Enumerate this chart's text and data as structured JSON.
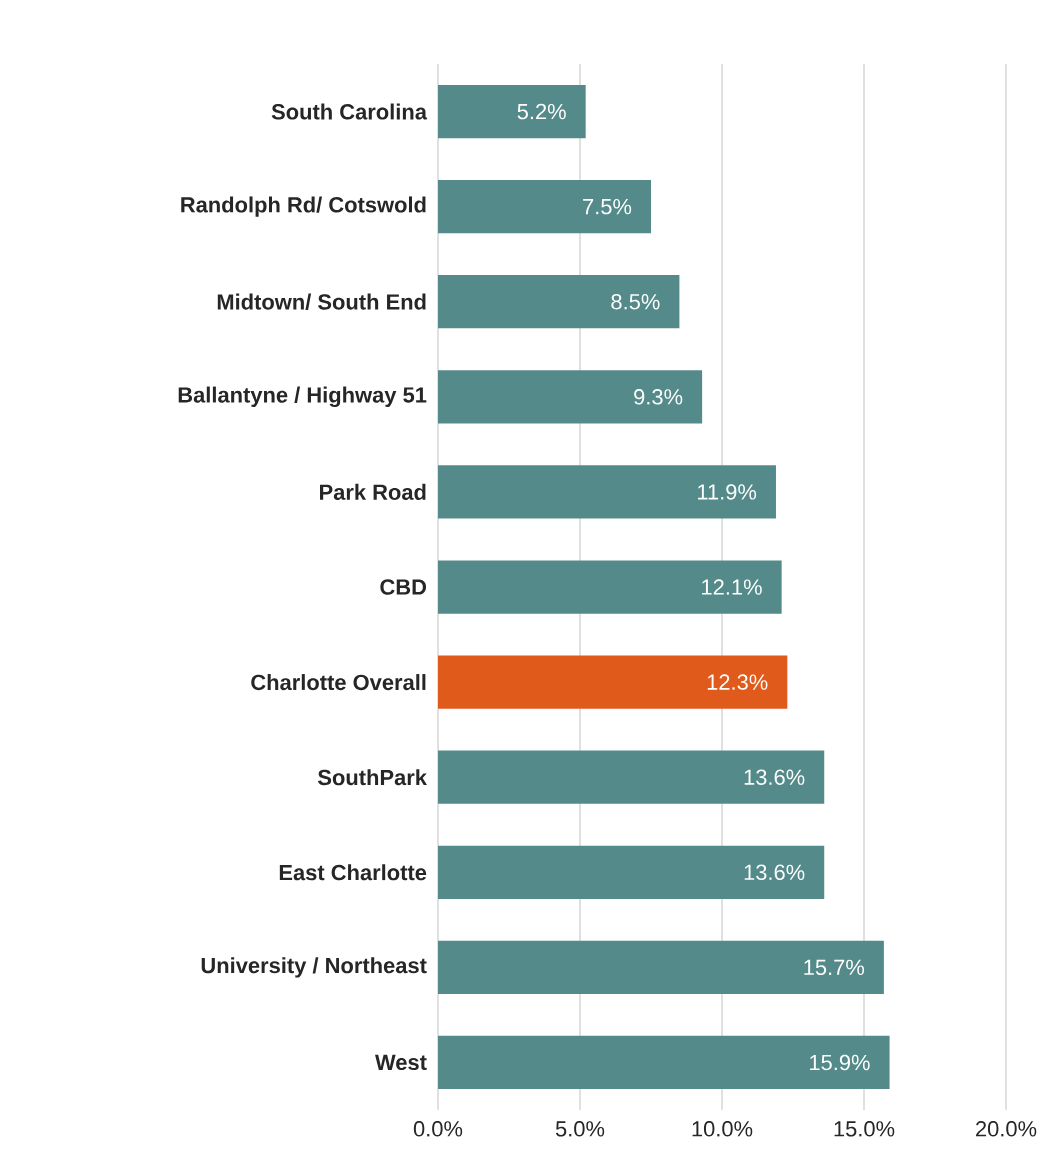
{
  "chart_data": {
    "type": "bar",
    "orientation": "horizontal",
    "categories": [
      "South Carolina",
      "Randolph Rd/ Cotswold",
      "Midtown/ South End",
      "Ballantyne / Highway 51",
      "Park Road",
      "CBD",
      "Charlotte Overall",
      "SouthPark",
      "East Charlotte",
      "University / Northeast",
      "West"
    ],
    "values": [
      5.2,
      7.5,
      8.5,
      9.3,
      11.9,
      12.1,
      12.3,
      13.6,
      13.6,
      15.7,
      15.9
    ],
    "colors": [
      "#548b8a",
      "#548b8a",
      "#548b8a",
      "#548b8a",
      "#548b8a",
      "#548b8a",
      "#e05a1c",
      "#548b8a",
      "#548b8a",
      "#548b8a",
      "#548b8a"
    ],
    "value_labels": [
      "5.2%",
      "7.5%",
      "8.5%",
      "9.3%",
      "11.9%",
      "12.1%",
      "12.3%",
      "13.6%",
      "13.6%",
      "15.7%",
      "15.9%"
    ],
    "xlim": [
      0,
      20
    ],
    "xticks": [
      {
        "value": 0,
        "label": "0.0%"
      },
      {
        "value": 5,
        "label": "5.0%"
      },
      {
        "value": 10,
        "label": "10.0%"
      },
      {
        "value": 15,
        "label": "15.0%"
      },
      {
        "value": 20,
        "label": "20.0%"
      }
    ],
    "grid": "x"
  }
}
